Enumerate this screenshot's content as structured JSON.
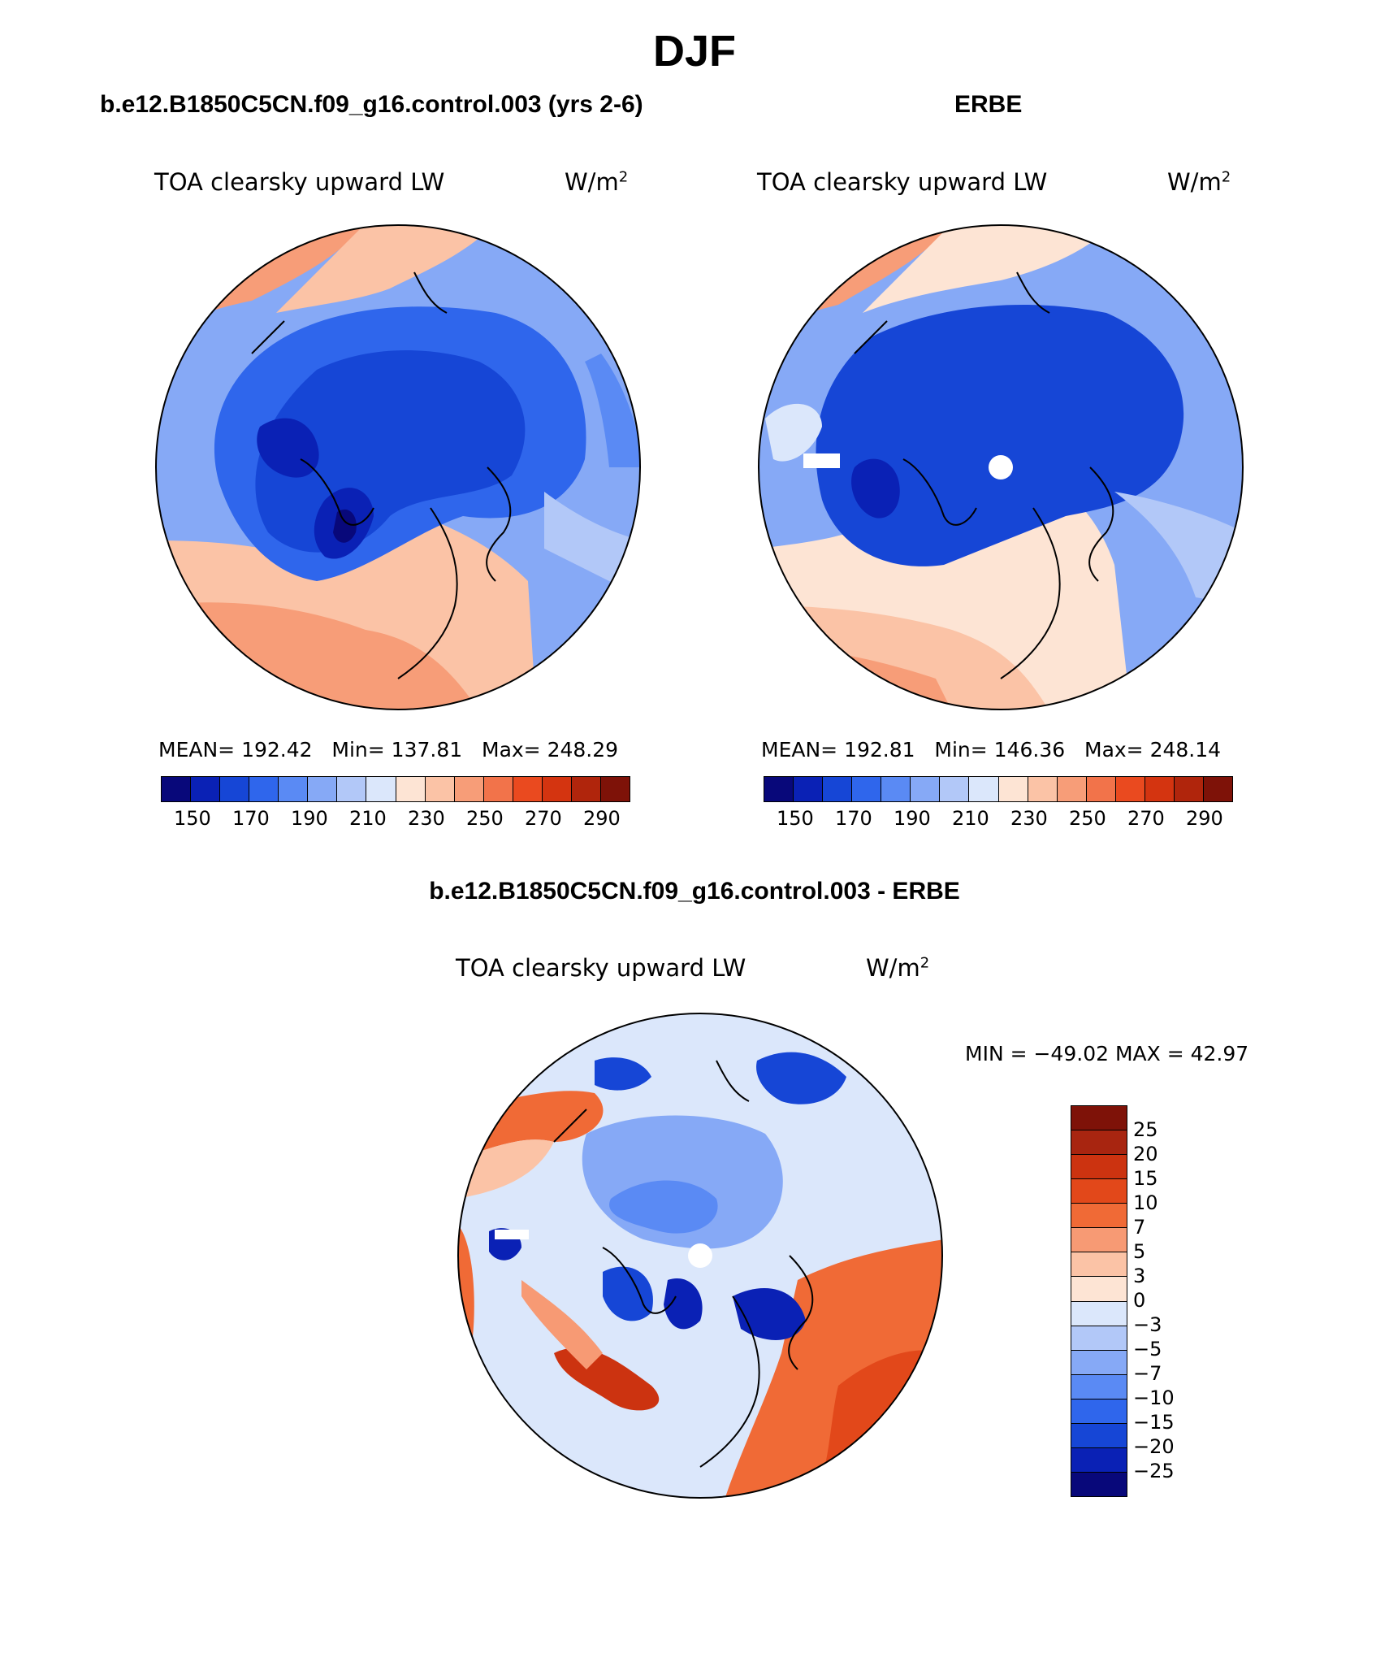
{
  "page_title": "DJF",
  "panels": [
    {
      "title": "b.e12.B1850C5CN.f09_g16.control.003 (yrs 2-6)",
      "variable": "TOA clearsky upward LW",
      "units_base": "W/m",
      "units_sup": "2",
      "stats": {
        "mean_label": "MEAN=",
        "mean": "192.42",
        "min_label": "Min=",
        "min": "137.81",
        "max_label": "Max=",
        "max": "248.29"
      },
      "colorbar_ticks": [
        "150",
        "170",
        "190",
        "210",
        "230",
        "250",
        "270",
        "290"
      ]
    },
    {
      "title": "ERBE",
      "variable": "TOA clearsky upward LW",
      "units_base": "W/m",
      "units_sup": "2",
      "stats": {
        "mean_label": "MEAN=",
        "mean": "192.81",
        "min_label": "Min=",
        "min": "146.36",
        "max_label": "Max=",
        "max": "248.14"
      },
      "colorbar_ticks": [
        "150",
        "170",
        "190",
        "210",
        "230",
        "250",
        "270",
        "290"
      ]
    }
  ],
  "diff": {
    "title": "b.e12.B1850C5CN.f09_g16.control.003 - ERBE",
    "variable": "TOA clearsky upward LW",
    "units_base": "W/m",
    "units_sup": "2",
    "minmax": "MIN = −49.02 MAX =   42.97",
    "colorbar_labels": [
      "25",
      "20",
      "15",
      "10",
      "7",
      "5",
      "3",
      "0",
      "−3",
      "−5",
      "−7",
      "−10",
      "−15",
      "−20",
      "−25"
    ]
  },
  "colors": {
    "abs_scale": [
      "#08087a",
      "#0a21b5",
      "#1646d6",
      "#2f66ec",
      "#5a8af4",
      "#86a9f6",
      "#b2c8f8",
      "#dbe7fb",
      "#fde4d4",
      "#fbc3a6",
      "#f79d78",
      "#f2734a",
      "#ea4a1f",
      "#d43410",
      "#b0250c",
      "#7e1208"
    ],
    "diff_scale": [
      "#7e1208",
      "#a82510",
      "#cc3310",
      "#e2481a",
      "#f06a36",
      "#f79a74",
      "#fbc3a6",
      "#fde4d4",
      "#dbe7fb",
      "#b2c8f8",
      "#86a9f6",
      "#5a8af4",
      "#2f66ec",
      "#1646d6",
      "#0a21b5",
      "#08087a"
    ]
  }
}
